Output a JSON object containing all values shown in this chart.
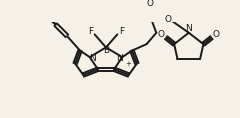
{
  "background_color": "#f5f0e8",
  "line_color": "#1a1a1a",
  "line_width": 1.4,
  "figsize": [
    2.4,
    1.18
  ],
  "dpi": 100,
  "xlim": [
    0,
    240
  ],
  "ylim": [
    0,
    118
  ]
}
